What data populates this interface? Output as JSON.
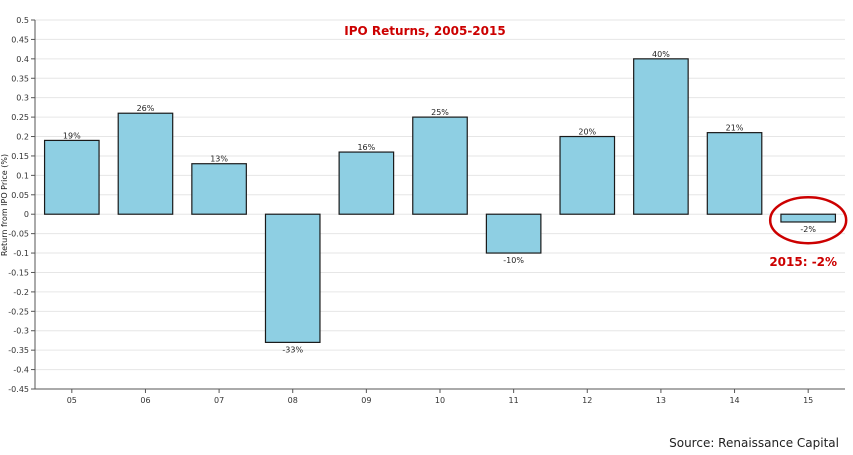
{
  "chart_data": {
    "type": "bar",
    "title": "IPO Returns, 2005-2015",
    "xlabel": "",
    "ylabel": "Return from IPO Price (%)",
    "categories": [
      "05",
      "06",
      "07",
      "08",
      "09",
      "10",
      "11",
      "12",
      "13",
      "14",
      "15"
    ],
    "values": [
      0.19,
      0.26,
      0.13,
      -0.33,
      0.16,
      0.25,
      -0.1,
      0.2,
      0.4,
      0.21,
      -0.02
    ],
    "data_labels": [
      "19%",
      "26%",
      "13%",
      "-33%",
      "16%",
      "25%",
      "-10%",
      "20%",
      "40%",
      "21%",
      "-2%"
    ],
    "ylim": [
      -0.45,
      0.5
    ],
    "yticks": [
      0.5,
      0.45,
      0.4,
      0.35,
      0.3,
      0.25,
      0.2,
      0.15,
      0.1,
      0.05,
      0,
      -0.05,
      -0.1,
      -0.15,
      -0.2,
      -0.25,
      -0.3,
      -0.35,
      -0.4,
      -0.45
    ],
    "ytick_labels": [
      "0.5",
      "0.45",
      "0.4",
      "0.35",
      "0.3",
      "0.25",
      "0.2",
      "0.15",
      "0.1",
      "0.05",
      "0",
      "-0.05",
      "-0.1",
      "-0.15",
      "-0.2",
      "-0.25",
      "-0.3",
      "-0.35",
      "-0.4",
      "-0.45"
    ],
    "grid": true,
    "bar_color": "#8ecfe3",
    "bar_edge_color": "#1a1a1a",
    "title_color": "#cc0000",
    "annotation": {
      "text": "2015: -2%",
      "target_category": "15",
      "color": "#cc0000",
      "shape": "ellipse"
    }
  },
  "source": "Source: Renaissance Capital"
}
